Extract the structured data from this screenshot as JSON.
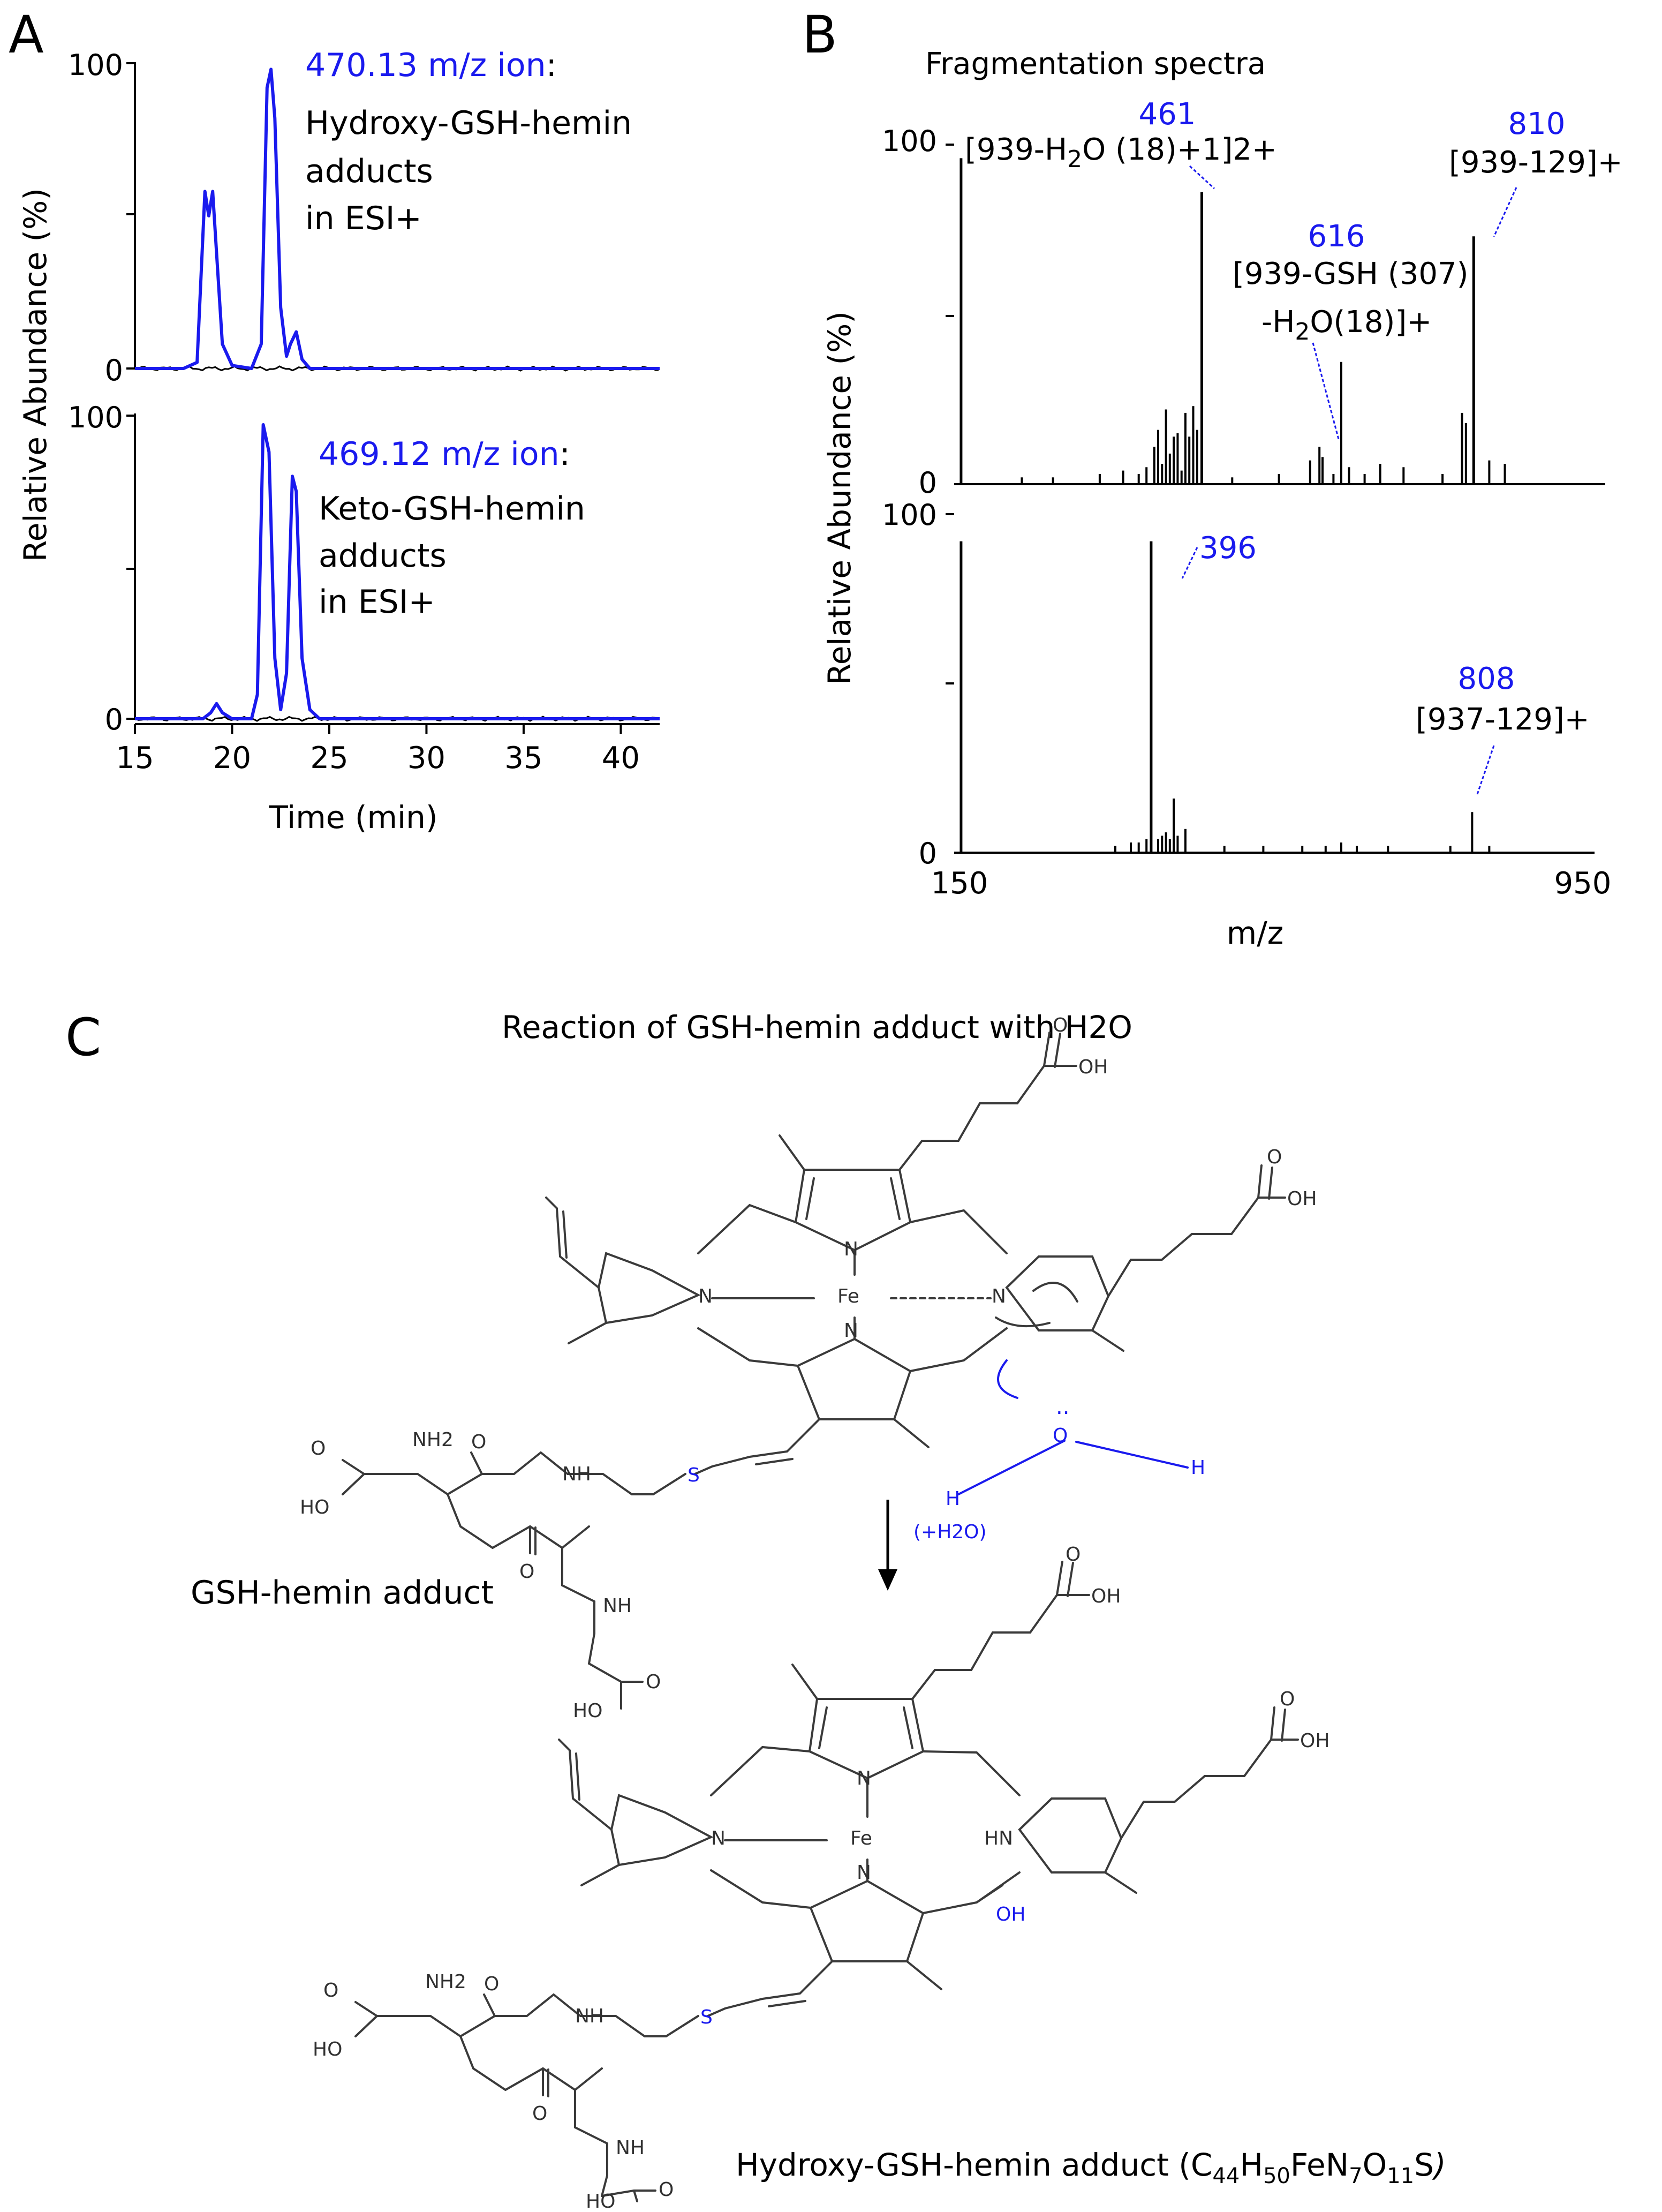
{
  "panels": {
    "a": {
      "letter": "A",
      "ylabel": "Relative Abundance (%)",
      "xlabel": "Time (min)",
      "xticks": [
        "15",
        "20",
        "25",
        "30",
        "35",
        "40"
      ],
      "top": {
        "ytick_max": "100",
        "ytick_min": "0",
        "ion": "470.13 m/z ion",
        "ion_colon": ":",
        "desc1": "Hydroxy-GSH-hemin",
        "desc2": "adducts",
        "desc3": "in ESI+"
      },
      "bottom": {
        "ytick_max": "100",
        "ytick_min": "0",
        "ion": "469.12 m/z ion",
        "ion_colon": ":",
        "desc1": "Keto-GSH-hemin",
        "desc2": "adducts",
        "desc3": "in ESI+"
      }
    },
    "b": {
      "letter": "B",
      "title": "Fragmentation spectra",
      "ylabel": "Relative Abundance (%)",
      "xlabel": "m/z",
      "xtick_min": "150",
      "xtick_max": "950",
      "top": {
        "ytick_max": "100",
        "ytick_min": "0",
        "p461_mz": "461",
        "p461_a": "[939-H",
        "p461_sub": "2",
        "p461_b": "O (18)+1]2+",
        "p616_mz": "616",
        "p616_l1": "[939-GSH (307)",
        "p616_a": "-H",
        "p616_sub": "2",
        "p616_b": "O(18)]+",
        "p810_mz": "810",
        "p810_label": "[939-129]+"
      },
      "bottom": {
        "ytick_max": "100",
        "ytick_min": "0",
        "p396_mz": "396",
        "p808_mz": "808",
        "p808_label": "[937-129]+"
      }
    },
    "c": {
      "letter": "C",
      "title": "Reaction of GSH-hemin adduct with H2O",
      "reactant_label": "GSH-hemin adduct",
      "product_label": "Hydroxy-GSH-hemin adduct (",
      "product_close": ")",
      "formula": [
        {
          "t": "C",
          "s": false
        },
        {
          "t": "44",
          "s": true
        },
        {
          "t": "H",
          "s": false
        },
        {
          "t": "50",
          "s": true
        },
        {
          "t": "FeN",
          "s": false
        },
        {
          "t": "7",
          "s": true
        },
        {
          "t": "O",
          "s": false
        },
        {
          "t": "11",
          "s": true
        },
        {
          "t": "S",
          "s": false
        }
      ],
      "water_note": "(+H2O)",
      "atoms": {
        "fe": "Fe",
        "n": "N",
        "hn": "HN",
        "nh": "NH",
        "nh2": "NH2",
        "s": "S",
        "oh": "OH",
        "ho": "HO",
        "o": "O",
        "h": "H",
        "lone_pair": ".."
      }
    }
  },
  "chart_data": [
    {
      "type": "line",
      "title": "",
      "xlabel": "Time (min)",
      "ylabel": "Relative Abundance (%)",
      "xlim": [
        15,
        42
      ],
      "ylim": [
        0,
        100
      ],
      "series": [
        {
          "name": "470.13 m/z ion",
          "color": "#1a1aee",
          "x": [
            15,
            17.5,
            18.2,
            18.6,
            18.8,
            19.0,
            19.2,
            19.5,
            20.0,
            21.0,
            21.5,
            21.8,
            22.0,
            22.2,
            22.5,
            22.8,
            23.0,
            23.3,
            23.6,
            24.0,
            25,
            30,
            35,
            42
          ],
          "y": [
            0,
            0,
            2,
            58,
            50,
            58,
            38,
            8,
            1,
            0,
            8,
            92,
            98,
            82,
            20,
            4,
            8,
            12,
            3,
            0,
            0,
            0,
            0,
            0
          ]
        }
      ]
    },
    {
      "type": "line",
      "title": "",
      "xlabel": "Time (min)",
      "ylabel": "Relative Abundance (%)",
      "xlim": [
        15,
        42
      ],
      "ylim": [
        0,
        100
      ],
      "series": [
        {
          "name": "469.12 m/z ion",
          "color": "#1a1aee",
          "x": [
            15,
            18.5,
            18.9,
            19.2,
            19.5,
            20.0,
            21.0,
            21.3,
            21.6,
            21.9,
            22.2,
            22.5,
            22.8,
            23.1,
            23.3,
            23.6,
            24.0,
            24.5,
            30,
            42
          ],
          "y": [
            0,
            0,
            2,
            5,
            2,
            0,
            0,
            8,
            97,
            88,
            20,
            3,
            15,
            80,
            75,
            20,
            3,
            0,
            0,
            0
          ]
        }
      ]
    },
    {
      "type": "bar",
      "title": "Fragmentation spectra",
      "xlabel": "m/z",
      "ylabel": "Relative Abundance (%)",
      "xlim": [
        150,
        950
      ],
      "ylim": [
        0,
        100
      ],
      "x": [
        152,
        230,
        270,
        330,
        360,
        380,
        390,
        400,
        405,
        410,
        415,
        420,
        425,
        430,
        435,
        440,
        445,
        450,
        455,
        461,
        500,
        560,
        600,
        612,
        616,
        630,
        640,
        650,
        670,
        690,
        720,
        770,
        795,
        800,
        810,
        830,
        850
      ],
      "values": [
        96,
        2,
        2,
        3,
        4,
        3,
        5,
        11,
        16,
        6,
        22,
        9,
        14,
        15,
        4,
        21,
        14,
        23,
        16,
        86,
        2,
        3,
        7,
        11,
        8,
        3,
        36,
        5,
        3,
        6,
        5,
        3,
        21,
        18,
        73,
        7,
        6
      ]
    },
    {
      "type": "bar",
      "title": "",
      "xlabel": "m/z",
      "ylabel": "Relative Abundance (%)",
      "xlim": [
        150,
        950
      ],
      "ylim": [
        0,
        100
      ],
      "x": [
        152,
        350,
        370,
        380,
        390,
        396,
        405,
        410,
        415,
        420,
        425,
        430,
        440,
        490,
        540,
        590,
        620,
        640,
        660,
        700,
        780,
        808,
        830
      ],
      "values": [
        92,
        2,
        3,
        3,
        4,
        92,
        4,
        5,
        6,
        4,
        16,
        5,
        7,
        2,
        2,
        2,
        2,
        3,
        2,
        2,
        2,
        12,
        2
      ]
    }
  ]
}
